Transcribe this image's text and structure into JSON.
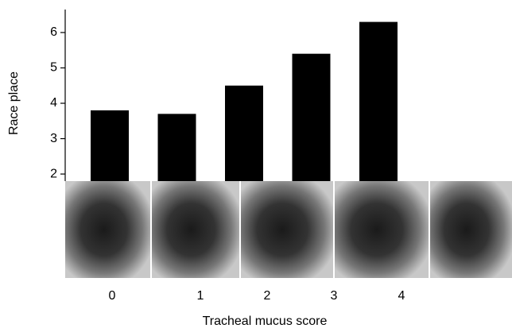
{
  "chart_data": {
    "type": "bar",
    "x_label": "Tracheal mucus score",
    "y_label": "Race place",
    "categories": [
      "0",
      "1",
      "2",
      "3",
      "4"
    ],
    "values": [
      3.8,
      3.7,
      4.5,
      5.4,
      6.3
    ],
    "color": "#000000",
    "ylim": [
      1.8,
      6.65
    ],
    "yticks": [
      2,
      3,
      4,
      5,
      6
    ]
  }
}
